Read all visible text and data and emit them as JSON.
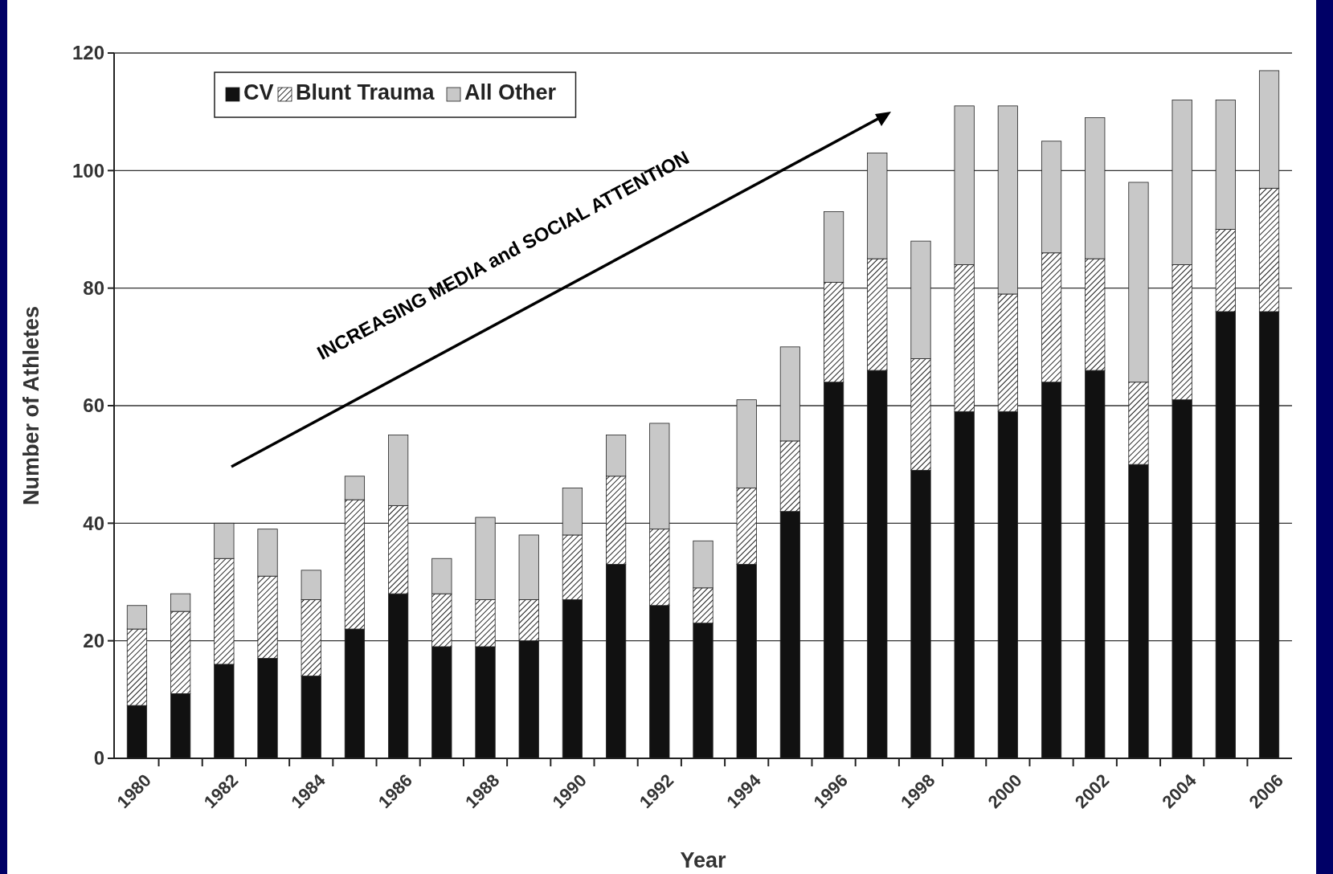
{
  "chart_data": {
    "type": "bar",
    "stacked": true,
    "categories": [
      "1980",
      null,
      "1982",
      null,
      "1984",
      null,
      "1986",
      null,
      "1988",
      null,
      "1990",
      null,
      "1992",
      null,
      "1994",
      null,
      "1996",
      null,
      "1998",
      null,
      "2000",
      null,
      "2002",
      null,
      "2004",
      null,
      "2006"
    ],
    "series": [
      {
        "name": "CV",
        "color": "#111111",
        "values": [
          9,
          11,
          16,
          17,
          14,
          22,
          28,
          19,
          19,
          20,
          27,
          33,
          26,
          23,
          33,
          42,
          64,
          66,
          49,
          59,
          59,
          64,
          66,
          50,
          61,
          76,
          76
        ]
      },
      {
        "name": "Blunt Trauma",
        "color": "#222222",
        "values": [
          13,
          14,
          18,
          14,
          13,
          22,
          15,
          9,
          8,
          7,
          11,
          15,
          13,
          6,
          13,
          12,
          17,
          19,
          19,
          25,
          20,
          22,
          19,
          14,
          23,
          14,
          21
        ]
      },
      {
        "name": "All Other",
        "color": "#c8c8c8",
        "values": [
          4,
          3,
          6,
          8,
          5,
          4,
          12,
          6,
          14,
          11,
          8,
          7,
          18,
          8,
          15,
          16,
          12,
          18,
          20,
          27,
          32,
          19,
          24,
          34,
          28,
          22,
          20
        ]
      }
    ],
    "ylim": [
      0,
      120
    ],
    "yticks": [
      0,
      20,
      40,
      60,
      80,
      100,
      120
    ],
    "grid": "y",
    "legend": "top left",
    "xlabel": "Year",
    "ylabel": "Number of Athletes",
    "annotations": [
      "INCREASING MEDIA and SOCIAL ATTENTION"
    ]
  }
}
